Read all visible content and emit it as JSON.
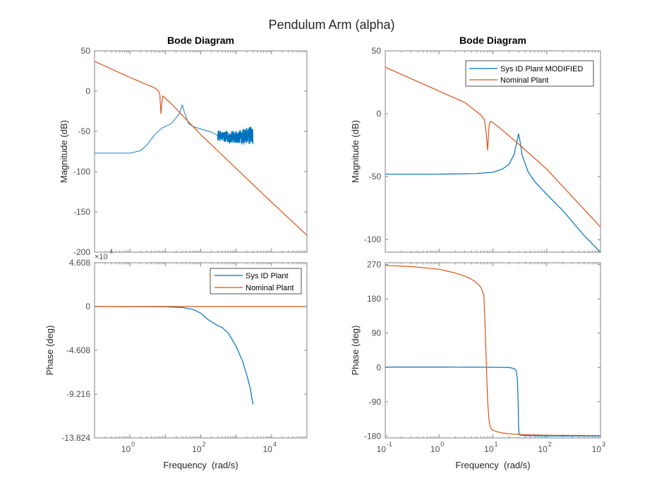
{
  "figure_title": "Pendulum Arm (alpha)",
  "colors": {
    "sysid": "#0072bd",
    "nominal": "#d95319",
    "axes": "#808080",
    "text": "#4d4d4d"
  },
  "chart_data": [
    {
      "id": "left-magnitude",
      "type": "line",
      "title": "Bode Diagram",
      "xlabel": "",
      "ylabel": "Magnitude (dB)",
      "xscale": "log",
      "xlim": [
        0.1,
        100000
      ],
      "ylim": [
        -200,
        50
      ],
      "yticks": [
        -200,
        -150,
        -100,
        -50,
        0,
        50
      ],
      "ytick_labels": [
        "-200",
        "-150",
        "-100",
        "-50",
        "0",
        "50"
      ],
      "xticks": [],
      "xtick_labels": [],
      "series": [
        {
          "name": "Sys ID Plant",
          "color": "#0072bd",
          "noise_from_x": 300,
          "noise_amplitude": 9,
          "x": [
            0.1,
            1,
            2,
            3,
            5,
            8,
            15,
            25,
            30,
            35,
            45,
            60,
            100,
            200,
            300,
            500,
            1000,
            2000,
            3000
          ],
          "y": [
            -77,
            -77,
            -74,
            -67,
            -54,
            -46,
            -40,
            -28,
            -17,
            -27,
            -40,
            -44,
            -47,
            -51,
            -55,
            -57,
            -58,
            -56,
            -55
          ]
        },
        {
          "name": "Nominal Plant",
          "color": "#d95319",
          "x": [
            0.1,
            1,
            5,
            6.5,
            7,
            7.5,
            8,
            8.5,
            10,
            15,
            30,
            100,
            1000,
            10000,
            100000
          ],
          "y": [
            37,
            17,
            4,
            0,
            -5,
            -28,
            -14,
            -6,
            -9,
            -16,
            -30,
            -54,
            -96,
            -138,
            -179
          ]
        }
      ]
    },
    {
      "id": "left-phase",
      "type": "line",
      "title": "",
      "xlabel": "Frequency  (rad/s)",
      "ylabel": "Phase (deg)",
      "xscale": "log",
      "xlim": [
        0.1,
        100000
      ],
      "ylim": [
        -13.824,
        4.608
      ],
      "y_multiplier": "×10",
      "y_multiplier_exponent": "4",
      "yticks": [
        -13.824,
        -9.216,
        -4.608,
        0,
        4.608
      ],
      "ytick_labels": [
        "-13.824",
        "-9.216",
        "-4.608",
        "0",
        "4.608"
      ],
      "xticks": [
        1,
        100,
        10000
      ],
      "xtick_base": [
        "10",
        "10",
        "10"
      ],
      "xtick_exponents": [
        "0",
        "2",
        "4"
      ],
      "legend": {
        "location": "top-right",
        "entries": [
          "Sys ID Plant",
          "Nominal Plant"
        ]
      },
      "series": [
        {
          "name": "Sys ID Plant",
          "color": "#0072bd",
          "x": [
            0.1,
            1,
            10,
            30,
            60,
            100,
            150,
            200,
            300,
            400,
            600,
            1000,
            1500,
            2000,
            2500,
            3000
          ],
          "y": [
            0,
            -0.01,
            -0.03,
            -0.1,
            -0.3,
            -0.7,
            -1.3,
            -1.6,
            -2.0,
            -2.2,
            -2.8,
            -4.2,
            -5.7,
            -7.2,
            -8.6,
            -10.3
          ]
        },
        {
          "name": "Nominal Plant",
          "color": "#d95319",
          "x": [
            0.1,
            100000
          ],
          "y": [
            0,
            0
          ]
        }
      ]
    },
    {
      "id": "right-magnitude",
      "type": "line",
      "title": "Bode Diagram",
      "xlabel": "",
      "ylabel": "Magnitude (dB)",
      "xscale": "log",
      "xlim": [
        0.1,
        1000
      ],
      "ylim": [
        -110,
        50
      ],
      "yticks": [
        -100,
        -50,
        0,
        50
      ],
      "ytick_labels": [
        "-100",
        "-50",
        "0",
        "50"
      ],
      "xticks": [],
      "xtick_labels": [],
      "legend": {
        "location": "top-right",
        "entries": [
          "Sys ID Plant MODIFIED",
          "Nominal Plant"
        ]
      },
      "series": [
        {
          "name": "Sys ID Plant MODIFIED",
          "color": "#0072bd",
          "x": [
            0.1,
            1,
            5,
            10,
            15,
            20,
            25,
            28,
            30,
            32,
            35,
            45,
            60,
            100,
            200,
            500,
            1000
          ],
          "y": [
            -48,
            -48,
            -47.5,
            -46.5,
            -44,
            -40,
            -32,
            -22,
            -16,
            -22,
            -33,
            -46,
            -54,
            -64,
            -77,
            -97,
            -110
          ]
        },
        {
          "name": "Nominal Plant",
          "color": "#d95319",
          "x": [
            0.1,
            1,
            3,
            6,
            7,
            7.5,
            8,
            8.3,
            8.6,
            9,
            10,
            15,
            30,
            100,
            1000
          ],
          "y": [
            37,
            18,
            9,
            -1,
            -5,
            -15,
            -29,
            -16,
            -8,
            -6,
            -7,
            -13,
            -24,
            -44,
            -90
          ]
        }
      ]
    },
    {
      "id": "right-phase",
      "type": "line",
      "title": "",
      "xlabel": "Frequency  (rad/s)",
      "ylabel": "Phase (deg)",
      "xscale": "log",
      "xlim": [
        0.1,
        1000
      ],
      "ylim": [
        -185,
        275
      ],
      "yticks": [
        -180,
        -90,
        0,
        90,
        180,
        270
      ],
      "ytick_labels": [
        "-180",
        "-90",
        "0",
        "90",
        "180",
        "270"
      ],
      "xticks": [
        0.1,
        1,
        10,
        100,
        1000
      ],
      "xtick_base": [
        "10",
        "10",
        "10",
        "10",
        "10"
      ],
      "xtick_exponents": [
        "-1",
        "0",
        "1",
        "2",
        "3"
      ],
      "series": [
        {
          "name": "Sys ID Plant MODIFIED",
          "color": "#0072bd",
          "x": [
            0.1,
            1,
            10,
            20,
            25,
            27,
            28.5,
            29.5,
            30,
            30.5,
            31.5,
            33,
            40,
            100,
            1000
          ],
          "y": [
            1,
            1,
            0.5,
            0,
            -3,
            -8,
            -30,
            -90,
            -150,
            -172,
            -177,
            -178,
            -179,
            -180,
            -180
          ]
        },
        {
          "name": "Nominal Plant",
          "color": "#d95319",
          "x": [
            0.1,
            0.3,
            1,
            2,
            3,
            4,
            5,
            6,
            6.8,
            7.2,
            7.6,
            8,
            8.5,
            9,
            10,
            12,
            15,
            20,
            30,
            50,
            100,
            1000
          ],
          "y": [
            268,
            265,
            258,
            248,
            240,
            232,
            222,
            210,
            190,
            100,
            0,
            -90,
            -140,
            -158,
            -165,
            -169,
            -172,
            -174,
            -176,
            -177,
            -178,
            -179
          ]
        }
      ]
    }
  ]
}
